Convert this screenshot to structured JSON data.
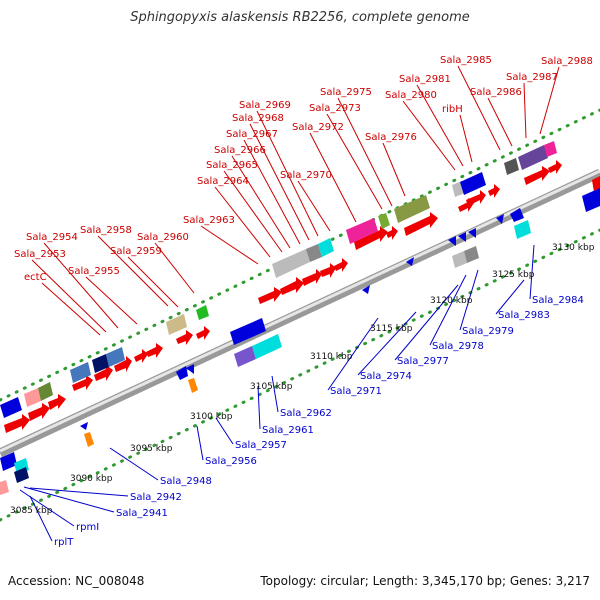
{
  "title": "Sphingopyxis alaskensis RB2256, complete genome",
  "footer": {
    "accession": "Accession: NC_008048",
    "summary": "Topology: circular; Length: 3,345,170 bp; Genes: 3,217"
  },
  "colors": {
    "forward_label": "#cc0000",
    "reverse_label": "#0000cc",
    "backbone": "#aaaaaa",
    "tick_dots": "#33aa33"
  },
  "scale_labels": [
    "3085 kbp",
    "3090 kbp",
    "3095 kbp",
    "3100 kbp",
    "3105 kbp",
    "3110 kbp",
    "3115 kbp",
    "3120 kbp",
    "3125 kbp",
    "3130 kbp"
  ],
  "forward_labels": [
    "ectC",
    "Sala_2953",
    "Sala_2954",
    "Sala_2955",
    "Sala_2958",
    "Sala_2959",
    "Sala_2960",
    "Sala_2963",
    "Sala_2964",
    "Sala_2965",
    "Sala_2966",
    "Sala_2967",
    "Sala_2968",
    "Sala_2969",
    "Sala_2970",
    "Sala_2972",
    "Sala_2973",
    "Sala_2975",
    "Sala_2976",
    "Sala_2980",
    "Sala_2981",
    "ribH",
    "Sala_2985",
    "Sala_2986",
    "Sala_2987",
    "Sala_2988"
  ],
  "reverse_labels": [
    "rplT",
    "rpmI",
    "Sala_2941",
    "Sala_2942",
    "Sala_2948",
    "Sala_2956",
    "Sala_2957",
    "Sala_2961",
    "Sala_2962",
    "Sala_2971",
    "Sala_2974",
    "Sala_2977",
    "Sala_2978",
    "Sala_2979",
    "Sala_2983",
    "Sala_2984"
  ]
}
